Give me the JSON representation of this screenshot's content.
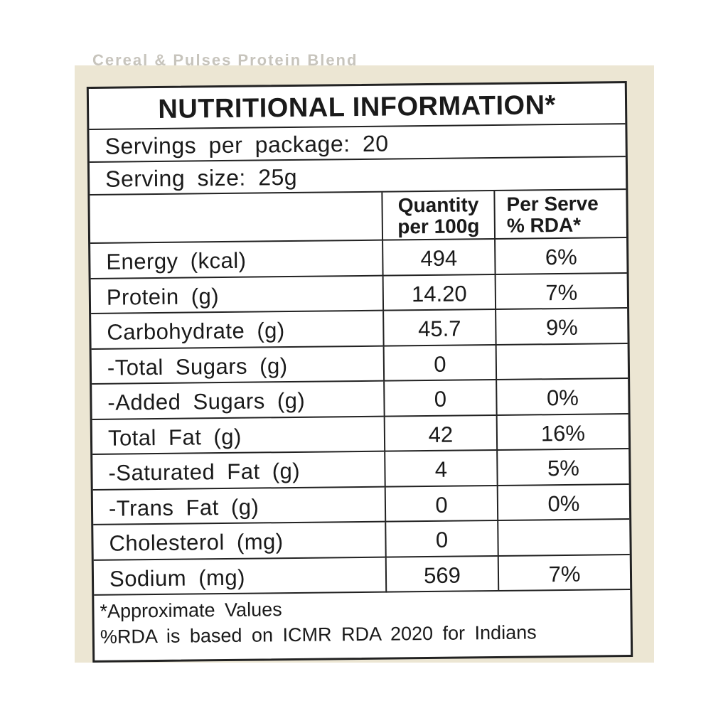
{
  "title": "NUTRITIONAL INFORMATION*",
  "servings_per_package": "Servings per package: 20",
  "serving_size": "Serving size: 25g",
  "columns": {
    "nutrient": "",
    "quantity": [
      "Quantity",
      "per 100g"
    ],
    "rda": [
      "Per Serve",
      "% RDA*"
    ]
  },
  "rows": [
    {
      "nutrient": "Energy (kcal)",
      "quantity": "494",
      "rda": "6%"
    },
    {
      "nutrient": "Protein (g)",
      "quantity": "14.20",
      "rda": "7%"
    },
    {
      "nutrient": "Carbohydrate (g)",
      "quantity": "45.7",
      "rda": "9%"
    },
    {
      "nutrient": "-Total Sugars (g)",
      "quantity": "0",
      "rda": ""
    },
    {
      "nutrient": "-Added Sugars (g)",
      "quantity": "0",
      "rda": "0%"
    },
    {
      "nutrient": "Total Fat (g)",
      "quantity": "42",
      "rda": "16%"
    },
    {
      "nutrient": "-Saturated Fat (g)",
      "quantity": "4",
      "rda": "5%"
    },
    {
      "nutrient": "-Trans Fat (g)",
      "quantity": "0",
      "rda": "0%"
    },
    {
      "nutrient": "Cholesterol (mg)",
      "quantity": "0",
      "rda": ""
    },
    {
      "nutrient": "Sodium (mg)",
      "quantity": "569",
      "rda": "7%"
    }
  ],
  "footnotes": [
    "*Approximate Values",
    "%RDA is based on ICMR RDA 2020 for Indians"
  ],
  "colors": {
    "package_background": "#ece6d3",
    "label_background": "#ffffff",
    "ink": "#1a1a1a"
  }
}
